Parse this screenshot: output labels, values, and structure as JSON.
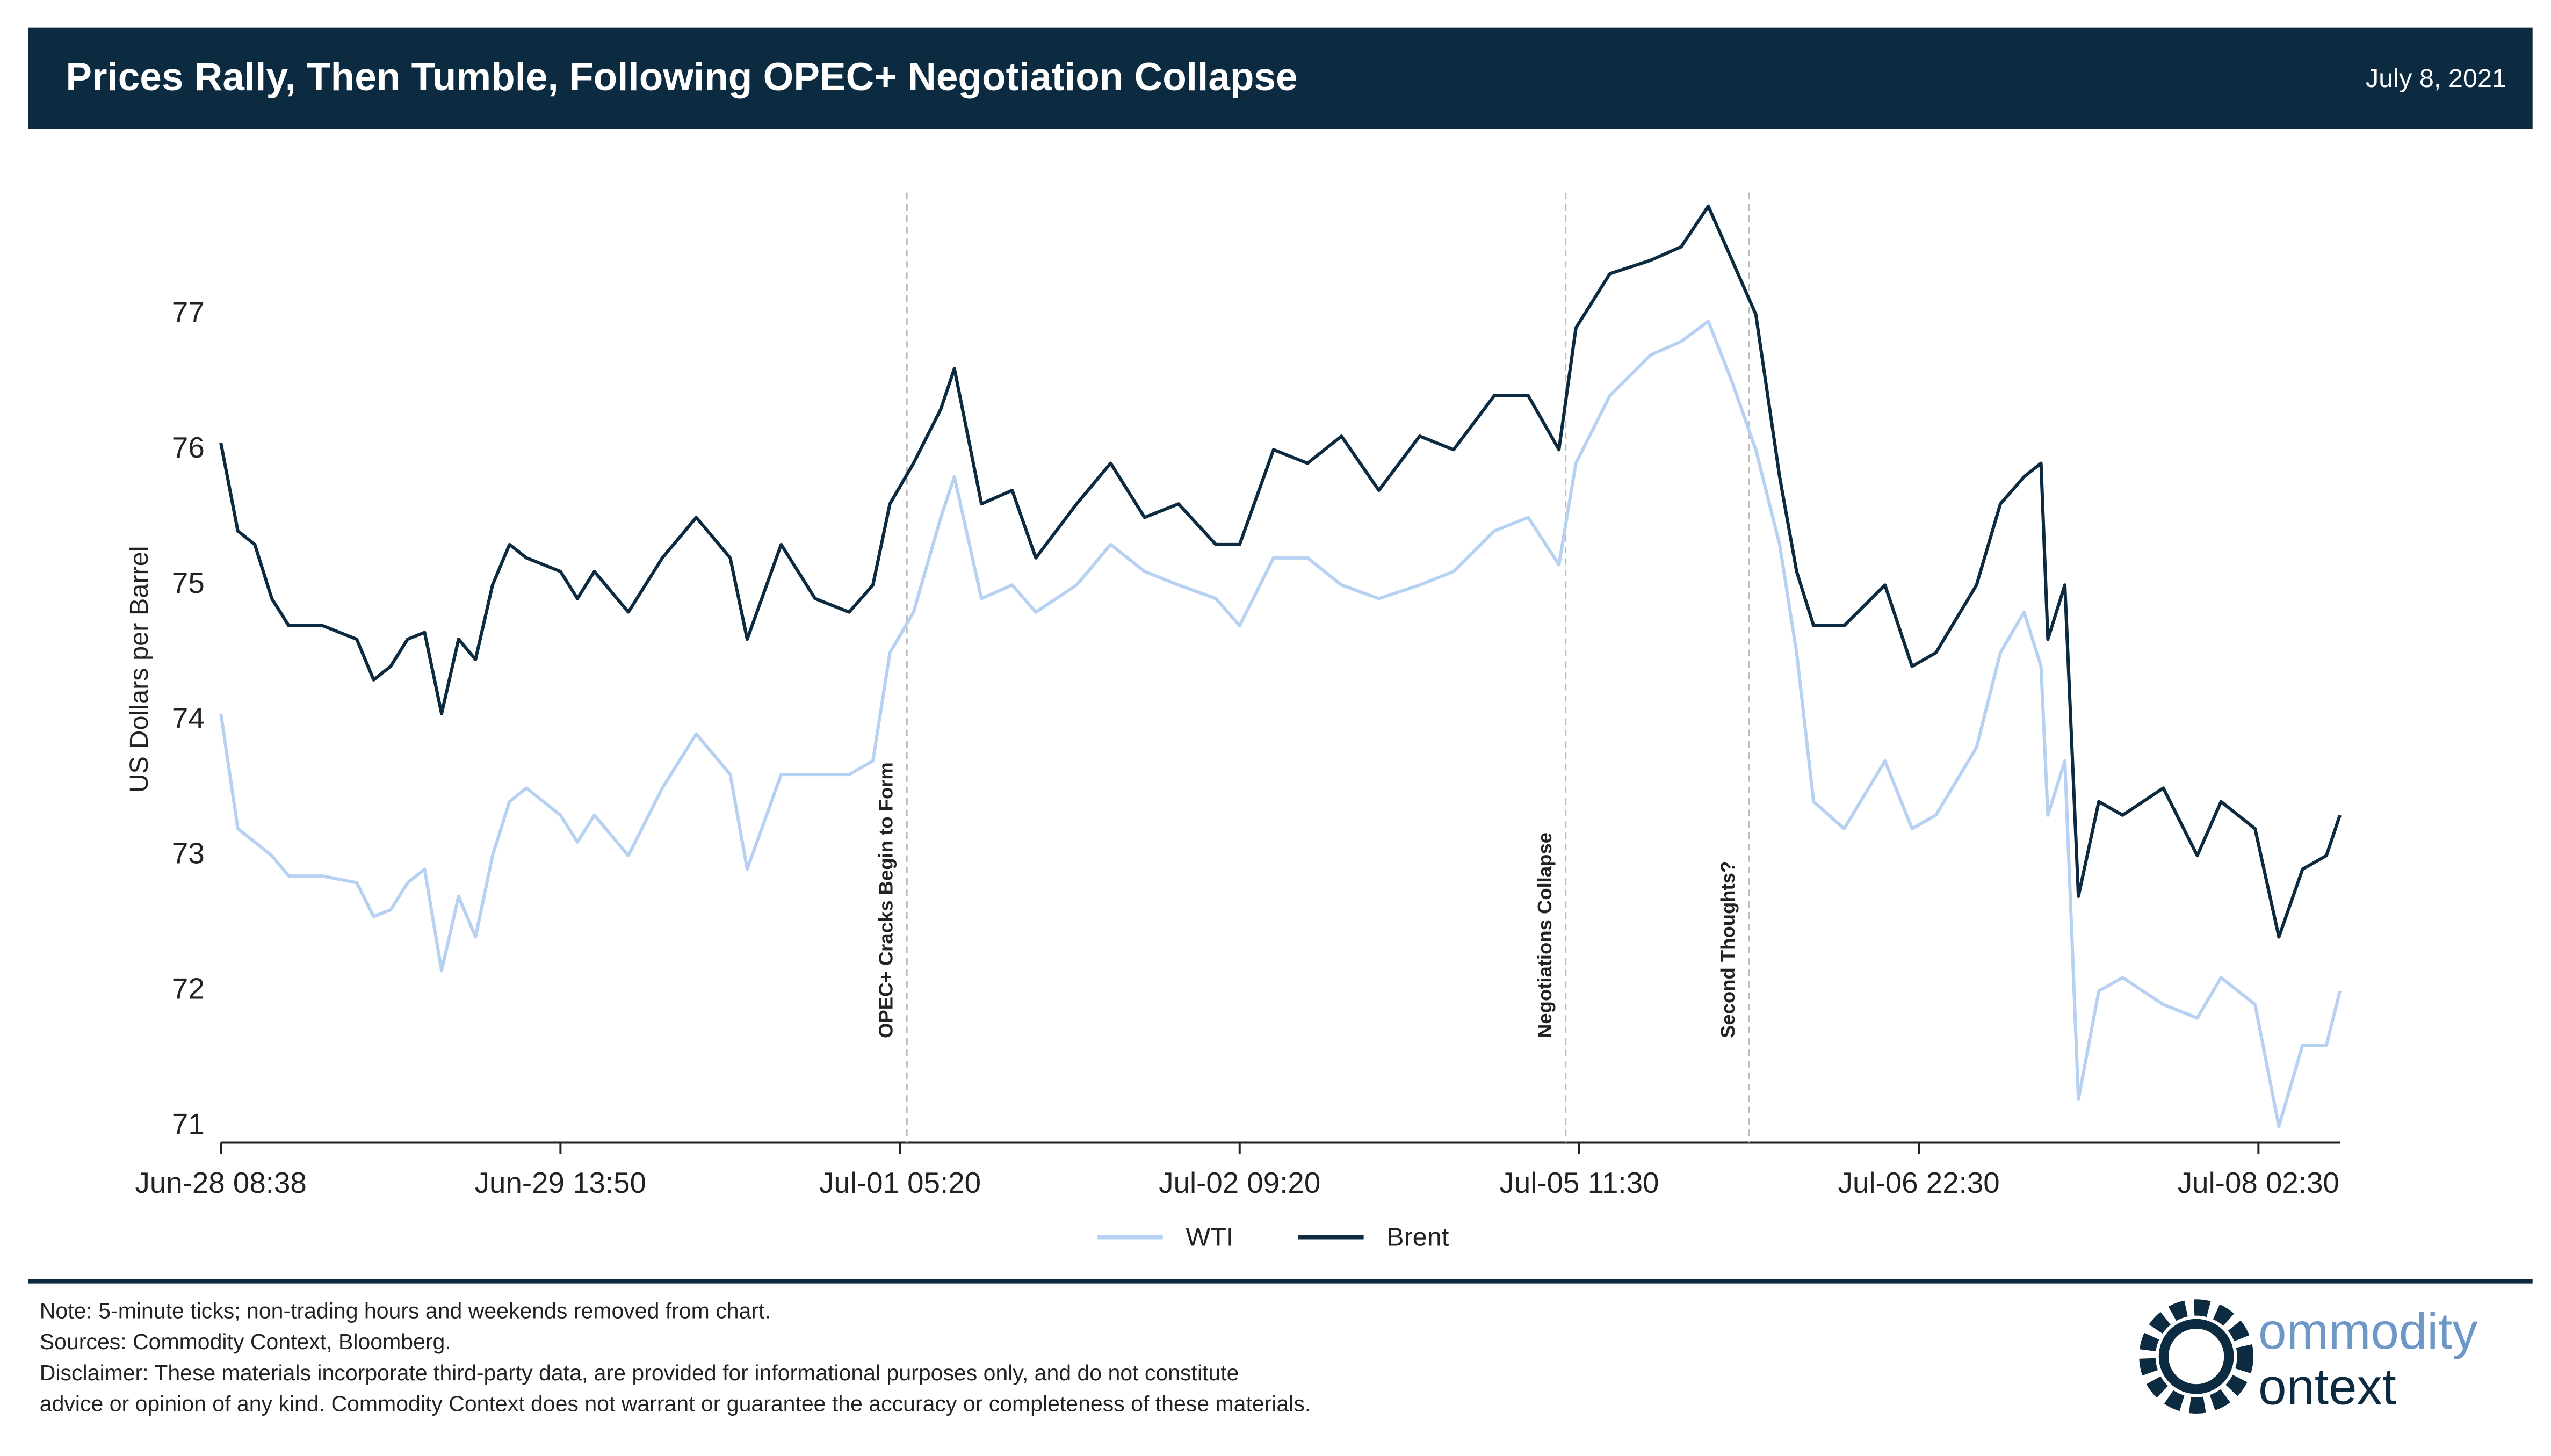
{
  "header": {
    "title": "Prices Rally, Then Tumble, Following OPEC+ Negotiation Collapse",
    "date": "July 8, 2021"
  },
  "chart_data": {
    "type": "line",
    "ylabel": "US Dollars per Barrel",
    "x": [
      0,
      0.05,
      0.1,
      0.15,
      0.2,
      0.3,
      0.4,
      0.45,
      0.5,
      0.55,
      0.6,
      0.65,
      0.7,
      0.75,
      0.8,
      0.85,
      0.9,
      1.0,
      1.05,
      1.1,
      1.2,
      1.3,
      1.4,
      1.5,
      1.55,
      1.65,
      1.75,
      1.85,
      1.92,
      1.97,
      2.04,
      2.12,
      2.16,
      2.24,
      2.33,
      2.4,
      2.52,
      2.62,
      2.72,
      2.82,
      2.93,
      3.0,
      3.1,
      3.2,
      3.3,
      3.41,
      3.53,
      3.63,
      3.75,
      3.85,
      3.94,
      3.99,
      4.09,
      4.21,
      4.3,
      4.38,
      4.45,
      4.52,
      4.59,
      4.64,
      4.69,
      4.78,
      4.9,
      4.98,
      5.05,
      5.17,
      5.24,
      5.31,
      5.36,
      5.38,
      5.43,
      5.47,
      5.53,
      5.6,
      5.72,
      5.82,
      5.89,
      5.99,
      6.06,
      6.13,
      6.2,
      6.24
    ],
    "series": [
      {
        "name": "WTI",
        "color": "#b7d1f3",
        "values": [
          74.05,
          73.2,
          73.1,
          73.0,
          72.85,
          72.85,
          72.8,
          72.55,
          72.6,
          72.8,
          72.9,
          72.15,
          72.7,
          72.4,
          73.0,
          73.4,
          73.5,
          73.3,
          73.1,
          73.3,
          73.0,
          73.5,
          73.9,
          73.6,
          72.9,
          73.6,
          73.6,
          73.6,
          73.7,
          74.5,
          74.8,
          75.5,
          75.8,
          74.9,
          75.0,
          74.8,
          75.0,
          75.3,
          75.1,
          75.0,
          74.9,
          74.7,
          75.2,
          75.2,
          75.0,
          74.9,
          75.0,
          75.1,
          75.4,
          75.5,
          75.15,
          75.9,
          76.4,
          76.7,
          76.8,
          76.95,
          76.5,
          76.0,
          75.3,
          74.5,
          73.4,
          73.2,
          73.7,
          73.2,
          73.3,
          73.8,
          74.5,
          74.8,
          74.4,
          73.3,
          73.7,
          71.2,
          72.0,
          72.1,
          71.9,
          71.8,
          72.1,
          71.9,
          71.0,
          71.6,
          71.6,
          72.0
        ]
      },
      {
        "name": "Brent",
        "color": "#0c2a40",
        "values": [
          76.05,
          75.4,
          75.3,
          74.9,
          74.7,
          74.7,
          74.6,
          74.3,
          74.4,
          74.6,
          74.65,
          74.05,
          74.6,
          74.45,
          75.0,
          75.3,
          75.2,
          75.1,
          74.9,
          75.1,
          74.8,
          75.2,
          75.5,
          75.2,
          74.6,
          75.3,
          74.9,
          74.8,
          75.0,
          75.6,
          75.9,
          76.3,
          76.6,
          75.6,
          75.7,
          75.2,
          75.6,
          75.9,
          75.5,
          75.6,
          75.3,
          75.3,
          76.0,
          75.9,
          76.1,
          75.7,
          76.1,
          76.0,
          76.4,
          76.4,
          76.0,
          76.9,
          77.3,
          77.4,
          77.5,
          77.8,
          77.4,
          77.0,
          75.8,
          75.1,
          74.7,
          74.7,
          75.0,
          74.4,
          74.5,
          75.0,
          75.6,
          75.8,
          75.9,
          74.6,
          75.0,
          72.7,
          73.4,
          73.3,
          73.5,
          73.0,
          73.4,
          73.2,
          72.4,
          72.9,
          73.0,
          73.3
        ]
      }
    ],
    "xlim": [
      0,
      6.24
    ],
    "xticks": [
      {
        "value": 0,
        "label": "Jun-28 08:38"
      },
      {
        "value": 1,
        "label": "Jun-29 13:50"
      },
      {
        "value": 2,
        "label": "Jul-01 05:20"
      },
      {
        "value": 3,
        "label": "Jul-02 09:20"
      },
      {
        "value": 4,
        "label": "Jul-05 11:30"
      },
      {
        "value": 5,
        "label": "Jul-06 22:30"
      },
      {
        "value": 6,
        "label": "Jul-08 02:30"
      }
    ],
    "ylim": [
      70.88,
      77.9
    ],
    "yticks": [
      71,
      72,
      73,
      74,
      75,
      76,
      77
    ],
    "annotations": [
      {
        "x": 2.02,
        "label": "OPEC+ Cracks Begin to Form"
      },
      {
        "x": 3.96,
        "label": "Negotiations Collapse"
      },
      {
        "x": 4.5,
        "label": "Second Thoughts?"
      }
    ],
    "legend": "bottom"
  },
  "footer": {
    "notes": [
      "Note: 5-minute ticks; non-trading hours and weekends removed from chart.",
      "Sources: Commodity Context, Bloomberg.",
      "Disclaimer: These materials incorporate third-party data, are provided for informational purposes only, and do not constitute",
      "advice or opinion of any kind. Commodity Context does not warrant or guarantee the accuracy or completeness of these materials."
    ],
    "logo": [
      "ommodity",
      "ontext"
    ]
  }
}
